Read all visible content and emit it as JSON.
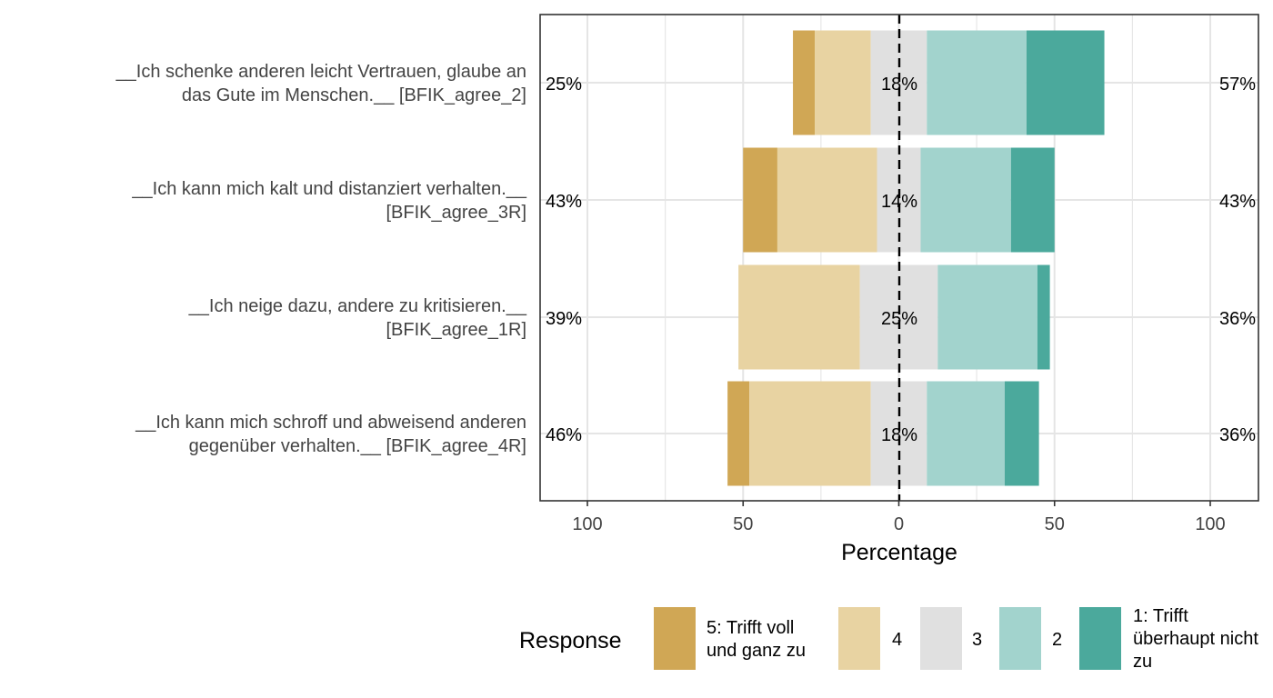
{
  "chart_data": {
    "type": "bar",
    "orientation": "horizontal",
    "stacking": "diverging",
    "xlabel": "Percentage",
    "xlim": [
      -100,
      100
    ],
    "xticks": [
      -100,
      -50,
      0,
      50,
      100
    ],
    "xtick_labels": [
      "100",
      "50",
      "0",
      "50",
      "100"
    ],
    "grid": true,
    "legend": {
      "title": "Response",
      "placement": "bottom",
      "items": [
        {
          "label": "5: Trifft voll und ganz zu",
          "lines": [
            "5: Trifft voll",
            "und ganz zu"
          ],
          "color": "#D0A755"
        },
        {
          "label": "4",
          "lines": [
            "4"
          ],
          "color": "#E8D3A2"
        },
        {
          "label": "3",
          "lines": [
            "3"
          ],
          "color": "#E0E0E0"
        },
        {
          "label": "2",
          "lines": [
            "2"
          ],
          "color": "#A2D3CD"
        },
        {
          "label": "1: Trifft überhaupt nicht zu",
          "lines": [
            "1: Trifft",
            "überhaupt nicht",
            "zu"
          ],
          "color": "#4BA99C"
        }
      ]
    },
    "items": [
      {
        "label_lines": [
          "__Ich schenke anderen leicht Vertrauen, glaube an",
          "das Gute im Menschen.__ [BFIK_agree_2]"
        ],
        "values": [
          7,
          18,
          18,
          32,
          25
        ],
        "left_label": "25%",
        "center_label": "18%",
        "right_label": "57%"
      },
      {
        "label_lines": [
          "__Ich kann mich kalt und distanziert verhalten.__",
          "[BFIK_agree_3R]"
        ],
        "values": [
          11,
          32,
          14,
          29,
          14
        ],
        "left_label": "43%",
        "center_label": "14%",
        "right_label": "43%"
      },
      {
        "label_lines": [
          "__Ich neige dazu, andere zu kritisieren.__",
          "[BFIK_agree_1R]"
        ],
        "values": [
          0,
          39,
          25,
          32,
          4
        ],
        "left_label": "39%",
        "center_label": "25%",
        "right_label": "36%"
      },
      {
        "label_lines": [
          "__Ich kann mich schroff und abweisend anderen",
          "gegenüber verhalten.__ [BFIK_agree_4R]"
        ],
        "values": [
          7,
          39,
          18,
          25,
          11
        ],
        "left_label": "46%",
        "center_label": "18%",
        "right_label": "36%"
      }
    ]
  }
}
